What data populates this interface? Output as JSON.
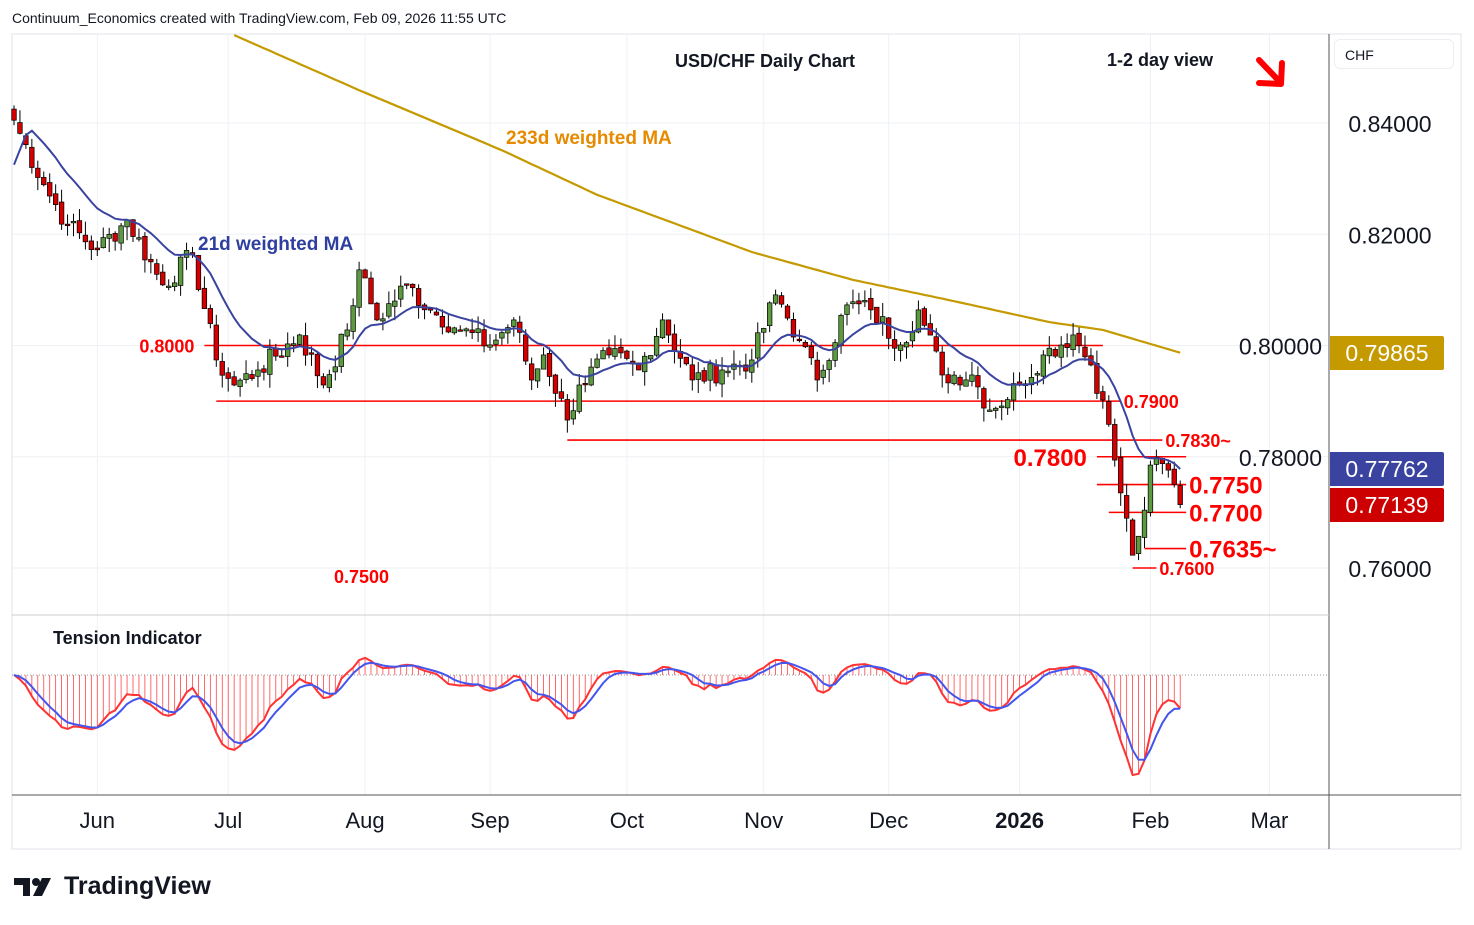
{
  "header": {
    "credit": "Continuum_Economics created with TradingView.com, Feb 09, 2026 11:55 UTC"
  },
  "brand": {
    "name": "TradingView"
  },
  "currency_button": "CHF",
  "price_tags": [
    {
      "label": "0.79865",
      "color": "#c49a00",
      "series": "233d weighted MA"
    },
    {
      "label": "0.77762",
      "color": "#3a44a0",
      "series": "21d weighted MA"
    },
    {
      "label": "0.77139",
      "color": "#cc0000",
      "series": "USD/CHF"
    }
  ],
  "colors": {
    "up": "#5b9a3f",
    "down": "#d40000",
    "ma233": "#c49a00",
    "ma21": "#3a44a0",
    "levels": "#ff0000",
    "arrow": "#ff0000"
  },
  "chart_data": {
    "type": "candlestick",
    "title": "USD/CHF Daily Chart",
    "subtitle": "1-2 day view",
    "outlook_icon": "down-right-arrow",
    "y_ticks": [
      "0.84000",
      "0.82000",
      "0.80000",
      "0.78000",
      "0.76000"
    ],
    "y_tick_values": [
      0.84,
      0.82,
      0.8,
      0.78,
      0.76
    ],
    "ylim": [
      0.7535,
      0.8605
    ],
    "x_ticks": [
      {
        "label": "Jun",
        "day": 14
      },
      {
        "label": "Jul",
        "day": 36
      },
      {
        "label": "Aug",
        "day": 59
      },
      {
        "label": "Sep",
        "day": 80
      },
      {
        "label": "Oct",
        "day": 103
      },
      {
        "label": "Nov",
        "day": 126
      },
      {
        "label": "Dec",
        "day": 147
      },
      {
        "label": "2026",
        "day": 169,
        "bold": true
      },
      {
        "label": "Feb",
        "day": 191
      },
      {
        "label": "Mar",
        "day": 211
      }
    ],
    "xlim": [
      0,
      221
    ],
    "close_anchors": [
      [
        0,
        0.8405
      ],
      [
        5,
        0.8289
      ],
      [
        9,
        0.8217
      ],
      [
        14,
        0.8172
      ],
      [
        19,
        0.8226
      ],
      [
        25,
        0.8109
      ],
      [
        30,
        0.8163
      ],
      [
        34,
        0.7974
      ],
      [
        37,
        0.7929
      ],
      [
        41,
        0.7956
      ],
      [
        48,
        0.8019
      ],
      [
        52,
        0.7929
      ],
      [
        56,
        0.8028
      ],
      [
        58,
        0.8136
      ],
      [
        61,
        0.8046
      ],
      [
        66,
        0.8109
      ],
      [
        70,
        0.8064
      ],
      [
        75,
        0.8028
      ],
      [
        80,
        0.8001
      ],
      [
        84,
        0.8046
      ],
      [
        87,
        0.7938
      ],
      [
        89,
        0.7983
      ],
      [
        93,
        0.7866
      ],
      [
        95,
        0.7929
      ],
      [
        100,
        0.7983
      ],
      [
        105,
        0.7956
      ],
      [
        109,
        0.8046
      ],
      [
        114,
        0.7938
      ],
      [
        119,
        0.7956
      ],
      [
        124,
        0.7974
      ],
      [
        128,
        0.8091
      ],
      [
        132,
        0.801
      ],
      [
        135,
        0.7938
      ],
      [
        140,
        0.8073
      ],
      [
        144,
        0.8064
      ],
      [
        149,
        0.8001
      ],
      [
        152,
        0.8064
      ],
      [
        156,
        0.7947
      ],
      [
        161,
        0.7947
      ],
      [
        164,
        0.7884
      ],
      [
        169,
        0.7929
      ],
      [
        173,
        0.7983
      ],
      [
        178,
        0.8019
      ],
      [
        181,
        0.7965
      ],
      [
        183,
        0.7902
      ],
      [
        185,
        0.7794
      ],
      [
        188,
        0.7623
      ],
      [
        190,
        0.7704
      ],
      [
        191,
        0.7785
      ],
      [
        194,
        0.7776
      ],
      [
        196,
        0.7714
      ]
    ],
    "ma233_anchors": [
      [
        37,
        0.8558
      ],
      [
        58,
        0.8459
      ],
      [
        82,
        0.8351
      ],
      [
        98,
        0.8271
      ],
      [
        124,
        0.8168
      ],
      [
        141,
        0.8118
      ],
      [
        157,
        0.8082
      ],
      [
        174,
        0.8042
      ],
      [
        183,
        0.8028
      ],
      [
        196,
        0.7987
      ]
    ],
    "series_labels": {
      "ma233": "233d weighted MA",
      "ma21": "21d weighted MA"
    },
    "levels": [
      {
        "label": "0.8000",
        "value": 0.8,
        "from": 32,
        "to": 183,
        "label_side": "left",
        "size": "m"
      },
      {
        "label": "0.7900",
        "value": 0.79,
        "from": 34,
        "to": 186,
        "label_side": "right",
        "size": "s"
      },
      {
        "label": "0.7830~",
        "value": 0.783,
        "from": 93,
        "to": 193,
        "label_side": "right",
        "size": "s"
      },
      {
        "label": "0.7800",
        "value": 0.78,
        "from": 182,
        "to": 197,
        "label_side": "left",
        "size": "l"
      },
      {
        "label": "0.7750",
        "value": 0.775,
        "from": 182,
        "to": 197,
        "label_side": "right",
        "size": "l"
      },
      {
        "label": "0.7700",
        "value": 0.77,
        "from": 184,
        "to": 197,
        "label_side": "right",
        "size": "l"
      },
      {
        "label": "0.7635~",
        "value": 0.7635,
        "from": 190,
        "to": 197,
        "label_side": "right",
        "size": "l"
      },
      {
        "label": "0.7600",
        "value": 0.76,
        "from": 188,
        "to": 192,
        "label_side": "right",
        "size": "s"
      }
    ],
    "annotation": {
      "label": "0.7500"
    },
    "indicator": {
      "title": "Tension Indicator"
    }
  }
}
